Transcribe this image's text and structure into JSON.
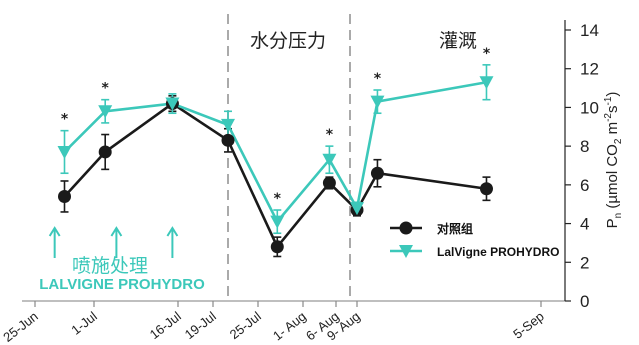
{
  "chart_data": {
    "type": "line",
    "x_ticks": [
      "25-Jun",
      "1-Jul",
      "16-Jul",
      "19-Jul",
      "25-Jul",
      "1- Aug",
      "6- Aug",
      "9- Aug",
      "5-Sep"
    ],
    "ylabel": "P_n (µmol CO₂ m⁻²s⁻¹)",
    "ylim": [
      0,
      14
    ],
    "yticks": [
      0,
      2,
      4,
      6,
      8,
      10,
      12,
      14
    ],
    "phases": [
      {
        "label": "水分压力"
      },
      {
        "label": "灌溉"
      }
    ],
    "spray": {
      "label_cn": "喷施处理",
      "label_en": "LALVIGNE PROHYDRO",
      "dates": [
        "27-Jun",
        "5-Jul",
        "15-Jul"
      ]
    },
    "significance_marker": "*",
    "series": [
      {
        "name": "对照组",
        "color": "#1a1a1a",
        "marker": "circle",
        "x": [
          "28-Jun",
          "3-Jul",
          "15-Jul",
          "21-Jul",
          "28-Jul",
          "5-Aug",
          "9-Aug",
          "12-Aug",
          "28-Aug"
        ],
        "y": [
          5.4,
          7.7,
          10.2,
          8.3,
          2.8,
          6.1,
          4.7,
          6.6,
          5.8
        ],
        "err": [
          0.8,
          0.9,
          0.4,
          0.6,
          0.5,
          0.3,
          0.3,
          0.7,
          0.6
        ]
      },
      {
        "name": "LalVigne PROHYDRO",
        "color": "#3cc8ba",
        "marker": "triangle-down",
        "x": [
          "28-Jun",
          "3-Jul",
          "15-Jul",
          "21-Jul",
          "28-Jul",
          "5-Aug",
          "9-Aug",
          "12-Aug",
          "28-Aug"
        ],
        "y": [
          7.7,
          9.8,
          10.2,
          9.1,
          4.1,
          7.3,
          4.8,
          10.3,
          11.3
        ],
        "err": [
          1.1,
          0.6,
          0.5,
          0.7,
          0.6,
          0.7,
          0.3,
          0.6,
          0.9
        ]
      }
    ],
    "significant_dates": [
      "28-Jun",
      "3-Jul",
      "28-Jul",
      "5-Aug",
      "12-Aug",
      "28-Aug"
    ],
    "legend_position": "inside-right"
  }
}
